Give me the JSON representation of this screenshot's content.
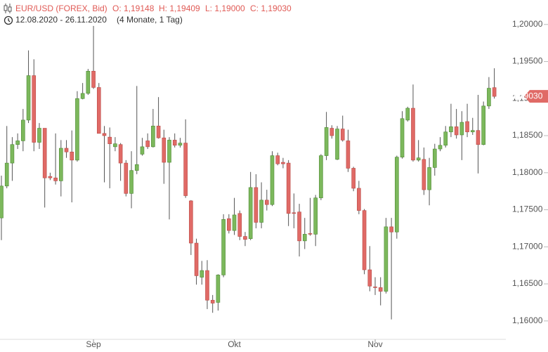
{
  "chart_data": {
    "type": "candlestick",
    "legend": {
      "label": "EUR/USD (FOREX, Bid)",
      "ohlc": [
        "O: 1,19148",
        "H: 1,19409",
        "L: 1,19000",
        "C: 1,19030"
      ]
    },
    "date_range": "12.08.2020 - 26.11.2020",
    "period": "(4 Monate, 1 Tag)",
    "last_price_label": "1,19030",
    "up_color": "#7cb85c",
    "down_color": "#e06a66",
    "categories": [
      null,
      null,
      null,
      null,
      null,
      null,
      null,
      null,
      null,
      null,
      null,
      null,
      null,
      null,
      null,
      null,
      null,
      "Sep",
      null,
      null,
      null,
      null,
      null,
      null,
      null,
      null,
      null,
      null,
      null,
      null,
      null,
      null,
      null,
      null,
      null,
      null,
      null,
      null,
      null,
      null,
      null,
      null,
      null,
      "Okt",
      null,
      null,
      null,
      null,
      null,
      null,
      null,
      null,
      null,
      null,
      null,
      null,
      null,
      null,
      null,
      null,
      null,
      null,
      null,
      null,
      null,
      null,
      null,
      null,
      null,
      "Nov",
      null,
      null,
      null,
      null,
      null,
      null,
      null,
      null,
      null,
      null,
      null,
      null,
      null,
      null,
      null,
      null,
      null,
      null,
      null,
      null,
      null,
      null
    ],
    "series": [
      {
        "name": "EUR/USD (FOREX, Bid)",
        "open": [
          1.1739,
          1.1782,
          1.1813,
          1.1838,
          1.1843,
          1.1871,
          1.1931,
          1.1841,
          1.186,
          1.1795,
          1.1793,
          1.1789,
          1.1833,
          1.1828,
          1.1817,
          1.19,
          1.1907,
          1.1937,
          1.1915,
          1.1853,
          1.1848,
          1.1835,
          1.1838,
          1.1813,
          1.1772,
          1.1803,
          1.1825,
          1.1843,
          1.1835,
          1.1863,
          1.1847,
          1.1814,
          1.1844,
          1.1837,
          1.184,
          1.1762,
          1.1705,
          1.1659,
          1.1668,
          1.1628,
          1.1625,
          1.1662,
          1.1738,
          1.1722,
          1.1745,
          1.1714,
          1.1711,
          1.178,
          1.1733,
          1.1763,
          1.1757,
          1.1823,
          1.1814,
          1.1813,
          1.1746,
          1.1747,
          1.1708,
          1.1718,
          1.1717,
          1.1766,
          1.1823,
          1.186,
          1.1818,
          1.1859,
          1.1843,
          1.1806,
          1.1779,
          1.1749,
          1.1669,
          1.1646,
          1.1645,
          1.164,
          1.1727,
          1.172,
          1.1821,
          1.1871,
          1.1887,
          1.1817,
          1.1818,
          1.1777,
          1.1807,
          1.1832,
          1.1837,
          1.1855,
          1.1862,
          1.1851,
          1.1869,
          1.1855,
          1.1857,
          1.1838,
          1.189,
          1.19148
        ],
        "high": [
          1.1796,
          1.1863,
          1.1848,
          1.1853,
          1.1886,
          1.1965,
          1.1953,
          1.1867,
          1.186,
          1.18,
          1.1853,
          1.1844,
          1.1844,
          1.1857,
          1.191,
          1.1921,
          1.194,
          1.1998,
          1.1921,
          1.1863,
          1.1861,
          1.1848,
          1.184,
          1.1817,
          1.1829,
          1.1917,
          1.1847,
          1.1853,
          1.1886,
          1.1902,
          1.1858,
          1.1848,
          1.1853,
          1.1847,
          1.1872,
          1.1763,
          1.1711,
          1.1681,
          1.1682,
          1.1635,
          1.1663,
          1.1744,
          1.1744,
          1.1766,
          1.1749,
          1.172,
          1.1801,
          1.1798,
          1.1787,
          1.1777,
          1.1829,
          1.1827,
          1.182,
          1.1817,
          1.1772,
          1.1758,
          1.1739,
          1.1766,
          1.177,
          1.1825,
          1.1882,
          1.1864,
          1.1863,
          1.1877,
          1.1858,
          1.1808,
          1.1789,
          1.1751,
          1.1701,
          1.1659,
          1.1659,
          1.1739,
          1.1739,
          1.1823,
          1.1883,
          1.1889,
          1.1919,
          1.1844,
          1.1834,
          1.182,
          1.1839,
          1.1848,
          1.1863,
          1.1893,
          1.1886,
          1.1883,
          1.1893,
          1.1874,
          1.1905,
          1.1896,
          1.1929,
          1.19409
        ],
        "low": [
          1.1709,
          1.1779,
          1.1789,
          1.1832,
          1.1829,
          1.1867,
          1.1829,
          1.1832,
          1.1753,
          1.179,
          1.1784,
          1.1768,
          1.182,
          1.176,
          1.1815,
          1.1899,
          1.1905,
          1.1913,
          1.1853,
          1.1787,
          1.1779,
          1.1829,
          1.1789,
          1.1768,
          1.1752,
          1.1798,
          1.1823,
          1.1832,
          1.1834,
          1.1846,
          1.1785,
          1.1737,
          1.1834,
          1.1834,
          1.1766,
          1.1689,
          1.1649,
          1.1649,
          1.1616,
          1.1611,
          1.1614,
          1.1659,
          1.1718,
          1.1716,
          1.1709,
          1.1701,
          1.1709,
          1.1725,
          1.1725,
          1.1749,
          1.1755,
          1.181,
          1.1806,
          1.1728,
          1.1725,
          1.1687,
          1.1697,
          1.1715,
          1.1701,
          1.1763,
          1.1817,
          1.1846,
          1.1817,
          1.1842,
          1.1801,
          1.1775,
          1.1744,
          1.1663,
          1.164,
          1.1635,
          1.1621,
          1.1637,
          1.1602,
          1.1711,
          1.1819,
          1.1869,
          1.1815,
          1.1815,
          1.177,
          1.1756,
          1.1796,
          1.1829,
          1.1834,
          1.1848,
          1.1846,
          1.1817,
          1.1848,
          1.1851,
          1.1799,
          1.1837,
          1.1886,
          1.19
        ],
        "close": [
          1.1782,
          1.1813,
          1.1838,
          1.1843,
          1.1871,
          1.1931,
          1.1841,
          1.186,
          1.1793,
          1.1793,
          1.1789,
          1.1833,
          1.1828,
          1.1817,
          1.19,
          1.1907,
          1.1937,
          1.1915,
          1.1853,
          1.185,
          1.1839,
          1.1839,
          1.1813,
          1.1772,
          1.1803,
          1.1811,
          1.1835,
          1.1835,
          1.1863,
          1.1847,
          1.1814,
          1.1844,
          1.1837,
          1.184,
          1.1769,
          1.1705,
          1.1661,
          1.1668,
          1.1628,
          1.1624,
          1.1662,
          1.1737,
          1.1722,
          1.1743,
          1.1714,
          1.171,
          1.178,
          1.1733,
          1.1763,
          1.1757,
          1.1823,
          1.1812,
          1.1812,
          1.1745,
          1.1745,
          1.1708,
          1.1717,
          1.1717,
          1.1766,
          1.1823,
          1.1861,
          1.185,
          1.1859,
          1.1844,
          1.1806,
          1.1779,
          1.1749,
          1.1669,
          1.1647,
          1.1645,
          1.164,
          1.1727,
          1.172,
          1.1821,
          1.1873,
          1.1887,
          1.1817,
          1.182,
          1.1777,
          1.1807,
          1.1832,
          1.1837,
          1.1855,
          1.1862,
          1.1851,
          1.1868,
          1.1855,
          1.1857,
          1.1838,
          1.189,
          1.1914,
          1.1903
        ]
      }
    ],
    "ylim": [
      1.1578,
      1.2033
    ],
    "yticks": [
      {
        "value": 1.16,
        "label": "1,16000"
      },
      {
        "value": 1.165,
        "label": "1,16500"
      },
      {
        "value": 1.17,
        "label": "1,17000"
      },
      {
        "value": 1.175,
        "label": "1,17500"
      },
      {
        "value": 1.18,
        "label": "1,18000"
      },
      {
        "value": 1.185,
        "label": "1,18500"
      },
      {
        "value": 1.19,
        "label": "1,19000"
      },
      {
        "value": 1.195,
        "label": "1,19500"
      },
      {
        "value": 1.2,
        "label": "1,20000"
      }
    ]
  }
}
